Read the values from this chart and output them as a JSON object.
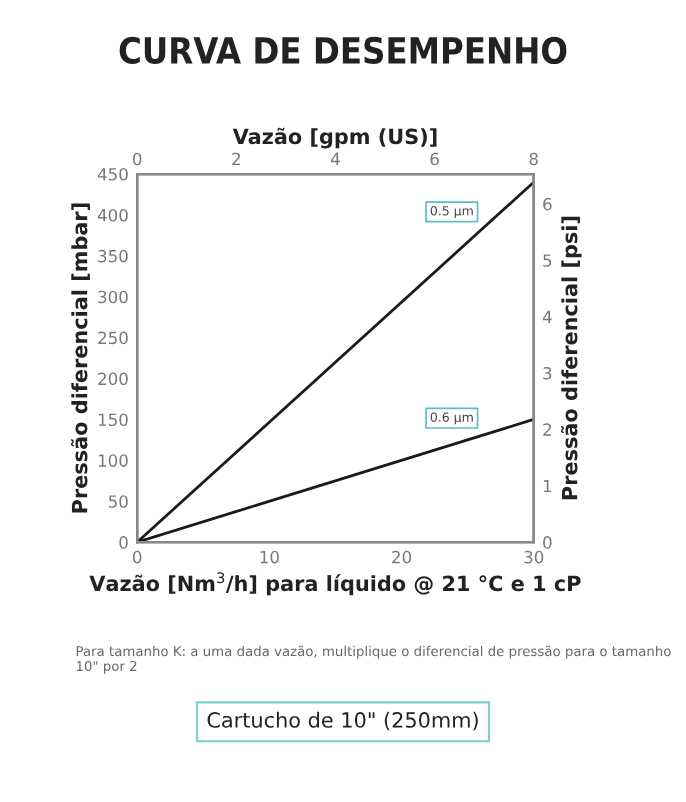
{
  "chart_data": {
    "type": "line",
    "title": "CURVA DE DESEMPENHO",
    "xlabel": "Vazão [Nm$^{3}$/h] para líquido @ 21 °C e 1 cP",
    "ylabel": "Pressão diferencial [mbar]",
    "y2label": "Pressão diferencial [psi]",
    "x2label": "Vazão [gpm (US)]",
    "x": [
      0,
      30
    ],
    "series": [
      {
        "name": "0.5 µm",
        "color": "#1a1a1a",
        "values": [
          0,
          440
        ]
      },
      {
        "name": "0.6 µm",
        "color": "#1a1a1a",
        "values": [
          0,
          150
        ]
      }
    ],
    "xlim": [
      0,
      30
    ],
    "xticks": [
      0,
      10,
      20,
      30
    ],
    "ylim": [
      0,
      450
    ],
    "yticks": [
      0,
      50,
      100,
      150,
      200,
      250,
      300,
      350,
      400,
      450
    ],
    "y2lim": [
      0,
      6.53
    ],
    "y2ticks": [
      0,
      1,
      2,
      3,
      4,
      5,
      6
    ],
    "x2lim": [
      0,
      8
    ],
    "x2ticks": [
      0,
      2,
      4,
      6,
      8
    ],
    "grid": false,
    "legend": false,
    "marker": "none",
    "line_style": "solid",
    "annotations": [
      "Para tamanho K: a uma dada vazão, multiplique o diferencial de pressão para o tamanho 10\" por 2",
      "Cartucho de 10\" (250mm)"
    ]
  }
}
